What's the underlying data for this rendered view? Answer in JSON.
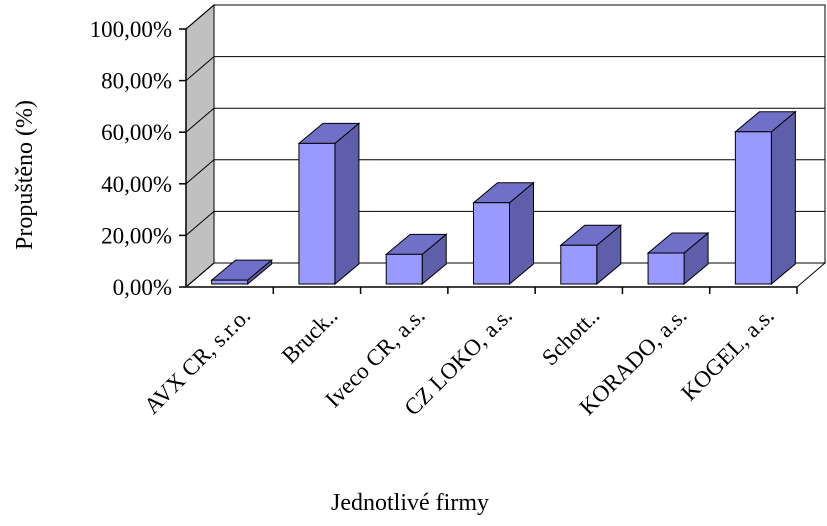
{
  "chart_data": {
    "type": "bar",
    "title": "",
    "xlabel": "Jednotlivé firmy",
    "ylabel": "Propuštěno (%)",
    "ylim": [
      0,
      100
    ],
    "yticks": [
      "0,00%",
      "20,00%",
      "40,00%",
      "60,00%",
      "80,00%",
      "100,00%"
    ],
    "categories": [
      "AVX CR, s.r.o.",
      "Bruck..",
      "Iveco CR, a.s.",
      "CZ LOKO, a.s.",
      "Schott..",
      "KORADO, a.s.",
      "KOGEL, a.s."
    ],
    "values": [
      1.5,
      54.5,
      11.5,
      31.5,
      15,
      12,
      59
    ],
    "grid": true,
    "legend": "none",
    "style": "3d-column",
    "colors": {
      "bar_front": "#9999FF",
      "bar_side": "#5E5EAA",
      "bar_top": "#7070C8",
      "wall": "#C0C0C0",
      "floor": "#FFFFFF"
    }
  }
}
